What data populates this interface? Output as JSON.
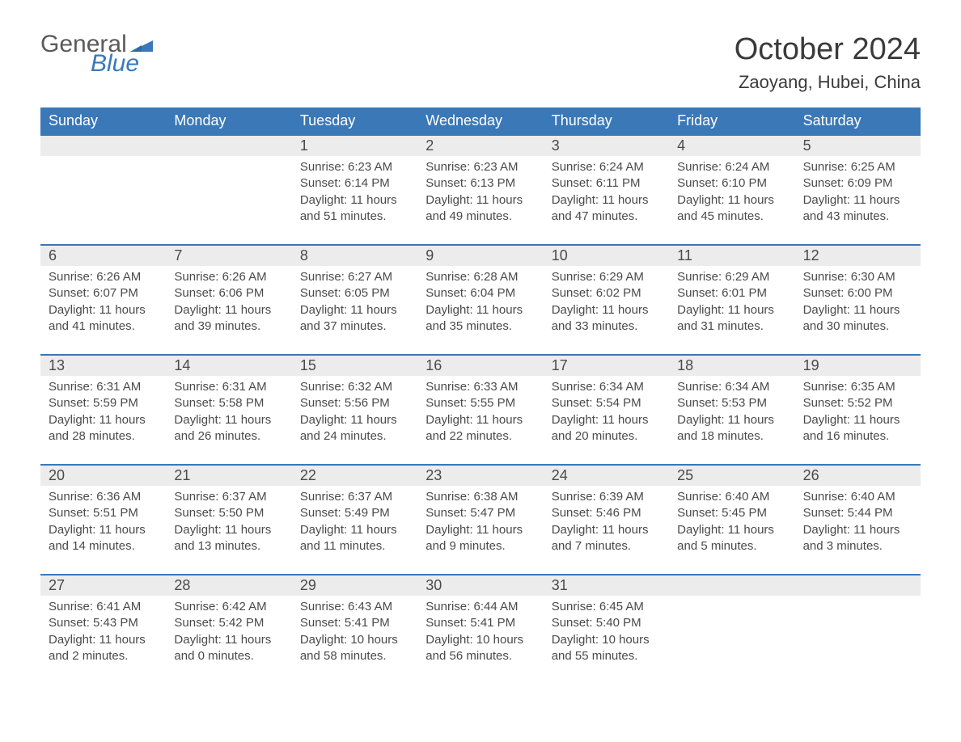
{
  "logo": {
    "text1": "General",
    "text2": "Blue",
    "flag_color": "#3a78b7"
  },
  "header": {
    "month_title": "October 2024",
    "location": "Zaoyang, Hubei, China"
  },
  "styling": {
    "header_bg": "#3a78b7",
    "header_text": "#ffffff",
    "daynum_bg": "#ececec",
    "border_color": "#3a78b7",
    "body_text": "#4a4a4a",
    "page_bg": "#ffffff",
    "month_title_fontsize": 38,
    "location_fontsize": 22,
    "weekday_fontsize": 18,
    "daynum_fontsize": 18,
    "cell_fontsize": 15
  },
  "weekdays": [
    "Sunday",
    "Monday",
    "Tuesday",
    "Wednesday",
    "Thursday",
    "Friday",
    "Saturday"
  ],
  "weeks": [
    [
      {
        "day": "",
        "sunrise": "",
        "sunset": "",
        "daylight": ""
      },
      {
        "day": "",
        "sunrise": "",
        "sunset": "",
        "daylight": ""
      },
      {
        "day": "1",
        "sunrise": "Sunrise: 6:23 AM",
        "sunset": "Sunset: 6:14 PM",
        "daylight": "Daylight: 11 hours and 51 minutes."
      },
      {
        "day": "2",
        "sunrise": "Sunrise: 6:23 AM",
        "sunset": "Sunset: 6:13 PM",
        "daylight": "Daylight: 11 hours and 49 minutes."
      },
      {
        "day": "3",
        "sunrise": "Sunrise: 6:24 AM",
        "sunset": "Sunset: 6:11 PM",
        "daylight": "Daylight: 11 hours and 47 minutes."
      },
      {
        "day": "4",
        "sunrise": "Sunrise: 6:24 AM",
        "sunset": "Sunset: 6:10 PM",
        "daylight": "Daylight: 11 hours and 45 minutes."
      },
      {
        "day": "5",
        "sunrise": "Sunrise: 6:25 AM",
        "sunset": "Sunset: 6:09 PM",
        "daylight": "Daylight: 11 hours and 43 minutes."
      }
    ],
    [
      {
        "day": "6",
        "sunrise": "Sunrise: 6:26 AM",
        "sunset": "Sunset: 6:07 PM",
        "daylight": "Daylight: 11 hours and 41 minutes."
      },
      {
        "day": "7",
        "sunrise": "Sunrise: 6:26 AM",
        "sunset": "Sunset: 6:06 PM",
        "daylight": "Daylight: 11 hours and 39 minutes."
      },
      {
        "day": "8",
        "sunrise": "Sunrise: 6:27 AM",
        "sunset": "Sunset: 6:05 PM",
        "daylight": "Daylight: 11 hours and 37 minutes."
      },
      {
        "day": "9",
        "sunrise": "Sunrise: 6:28 AM",
        "sunset": "Sunset: 6:04 PM",
        "daylight": "Daylight: 11 hours and 35 minutes."
      },
      {
        "day": "10",
        "sunrise": "Sunrise: 6:29 AM",
        "sunset": "Sunset: 6:02 PM",
        "daylight": "Daylight: 11 hours and 33 minutes."
      },
      {
        "day": "11",
        "sunrise": "Sunrise: 6:29 AM",
        "sunset": "Sunset: 6:01 PM",
        "daylight": "Daylight: 11 hours and 31 minutes."
      },
      {
        "day": "12",
        "sunrise": "Sunrise: 6:30 AM",
        "sunset": "Sunset: 6:00 PM",
        "daylight": "Daylight: 11 hours and 30 minutes."
      }
    ],
    [
      {
        "day": "13",
        "sunrise": "Sunrise: 6:31 AM",
        "sunset": "Sunset: 5:59 PM",
        "daylight": "Daylight: 11 hours and 28 minutes."
      },
      {
        "day": "14",
        "sunrise": "Sunrise: 6:31 AM",
        "sunset": "Sunset: 5:58 PM",
        "daylight": "Daylight: 11 hours and 26 minutes."
      },
      {
        "day": "15",
        "sunrise": "Sunrise: 6:32 AM",
        "sunset": "Sunset: 5:56 PM",
        "daylight": "Daylight: 11 hours and 24 minutes."
      },
      {
        "day": "16",
        "sunrise": "Sunrise: 6:33 AM",
        "sunset": "Sunset: 5:55 PM",
        "daylight": "Daylight: 11 hours and 22 minutes."
      },
      {
        "day": "17",
        "sunrise": "Sunrise: 6:34 AM",
        "sunset": "Sunset: 5:54 PM",
        "daylight": "Daylight: 11 hours and 20 minutes."
      },
      {
        "day": "18",
        "sunrise": "Sunrise: 6:34 AM",
        "sunset": "Sunset: 5:53 PM",
        "daylight": "Daylight: 11 hours and 18 minutes."
      },
      {
        "day": "19",
        "sunrise": "Sunrise: 6:35 AM",
        "sunset": "Sunset: 5:52 PM",
        "daylight": "Daylight: 11 hours and 16 minutes."
      }
    ],
    [
      {
        "day": "20",
        "sunrise": "Sunrise: 6:36 AM",
        "sunset": "Sunset: 5:51 PM",
        "daylight": "Daylight: 11 hours and 14 minutes."
      },
      {
        "day": "21",
        "sunrise": "Sunrise: 6:37 AM",
        "sunset": "Sunset: 5:50 PM",
        "daylight": "Daylight: 11 hours and 13 minutes."
      },
      {
        "day": "22",
        "sunrise": "Sunrise: 6:37 AM",
        "sunset": "Sunset: 5:49 PM",
        "daylight": "Daylight: 11 hours and 11 minutes."
      },
      {
        "day": "23",
        "sunrise": "Sunrise: 6:38 AM",
        "sunset": "Sunset: 5:47 PM",
        "daylight": "Daylight: 11 hours and 9 minutes."
      },
      {
        "day": "24",
        "sunrise": "Sunrise: 6:39 AM",
        "sunset": "Sunset: 5:46 PM",
        "daylight": "Daylight: 11 hours and 7 minutes."
      },
      {
        "day": "25",
        "sunrise": "Sunrise: 6:40 AM",
        "sunset": "Sunset: 5:45 PM",
        "daylight": "Daylight: 11 hours and 5 minutes."
      },
      {
        "day": "26",
        "sunrise": "Sunrise: 6:40 AM",
        "sunset": "Sunset: 5:44 PM",
        "daylight": "Daylight: 11 hours and 3 minutes."
      }
    ],
    [
      {
        "day": "27",
        "sunrise": "Sunrise: 6:41 AM",
        "sunset": "Sunset: 5:43 PM",
        "daylight": "Daylight: 11 hours and 2 minutes."
      },
      {
        "day": "28",
        "sunrise": "Sunrise: 6:42 AM",
        "sunset": "Sunset: 5:42 PM",
        "daylight": "Daylight: 11 hours and 0 minutes."
      },
      {
        "day": "29",
        "sunrise": "Sunrise: 6:43 AM",
        "sunset": "Sunset: 5:41 PM",
        "daylight": "Daylight: 10 hours and 58 minutes."
      },
      {
        "day": "30",
        "sunrise": "Sunrise: 6:44 AM",
        "sunset": "Sunset: 5:41 PM",
        "daylight": "Daylight: 10 hours and 56 minutes."
      },
      {
        "day": "31",
        "sunrise": "Sunrise: 6:45 AM",
        "sunset": "Sunset: 5:40 PM",
        "daylight": "Daylight: 10 hours and 55 minutes."
      },
      {
        "day": "",
        "sunrise": "",
        "sunset": "",
        "daylight": ""
      },
      {
        "day": "",
        "sunrise": "",
        "sunset": "",
        "daylight": ""
      }
    ]
  ]
}
